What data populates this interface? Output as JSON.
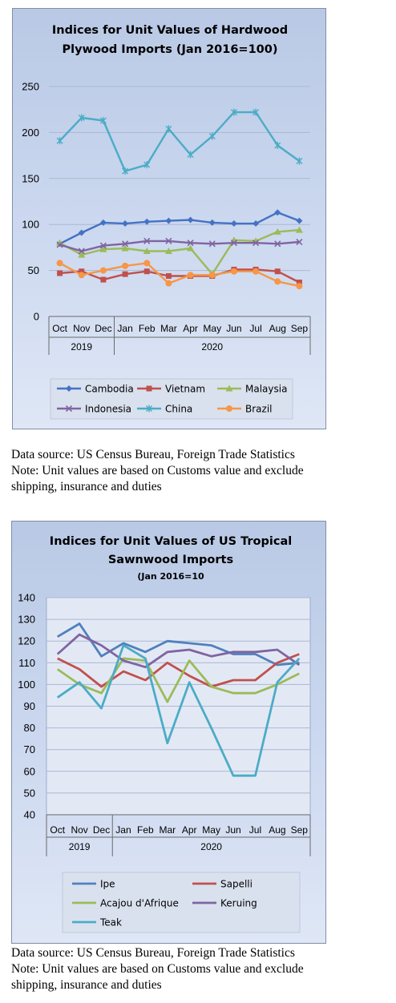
{
  "charts": [
    {
      "title_line1": "Indices for Unit Values of Hardwood",
      "title_line2": "Plywood Imports (Jan 2016=100)",
      "subtitle": ""
    },
    {
      "title_line1": "Indices for Unit Values of US Tropical",
      "title_line2": "Sawnwood Imports",
      "subtitle": "(Jan 2016=10"
    }
  ],
  "notes": [
    {
      "source": "Data source: US Census Bureau, Foreign Trade Statistics",
      "note_line1": "Note: Unit values are based on Customs value and exclude",
      "note_line2": "shipping, insurance and duties"
    },
    {
      "source": "Data source: US Census Bureau, Foreign Trade Statistics",
      "note_line1": "Note: Unit values are based on Customs value and exclude",
      "note_line2": "shipping, insurance and duties"
    }
  ],
  "chart_data": [
    {
      "type": "line",
      "title": "Indices for Unit Values of Hardwood Plywood Imports (Jan 2016=100)",
      "categories": [
        "Oct",
        "Nov",
        "Dec",
        "Jan",
        "Feb",
        "Mar",
        "Apr",
        "May",
        "Jun",
        "Jul",
        "Aug",
        "Sep"
      ],
      "year_groups": [
        {
          "label": "2019",
          "span": 3
        },
        {
          "label": "2020",
          "span": 9
        }
      ],
      "ylim": [
        0,
        250
      ],
      "yticks": [
        0,
        50,
        100,
        150,
        200,
        250
      ],
      "grid": true,
      "legend_position": "bottom",
      "legend_columns": 3,
      "series": [
        {
          "name": "Cambodia",
          "color": "#4472c4",
          "marker": "diamond",
          "values": [
            79,
            91,
            102,
            101,
            103,
            104,
            105,
            102,
            101,
            101,
            113,
            104
          ]
        },
        {
          "name": "Vietnam",
          "color": "#c0504d",
          "marker": "square",
          "values": [
            47,
            49,
            40,
            46,
            49,
            44,
            44,
            44,
            51,
            51,
            49,
            37
          ]
        },
        {
          "name": "Malaysia",
          "color": "#9bbb59",
          "marker": "triangle",
          "values": [
            80,
            67,
            73,
            74,
            71,
            71,
            74,
            46,
            83,
            82,
            92,
            94
          ]
        },
        {
          "name": "Indonesia",
          "color": "#8064a2",
          "marker": "x",
          "values": [
            78,
            71,
            77,
            79,
            82,
            82,
            80,
            79,
            80,
            80,
            79,
            81
          ]
        },
        {
          "name": "China",
          "color": "#4bacc6",
          "marker": "star",
          "values": [
            191,
            216,
            213,
            158,
            165,
            204,
            176,
            196,
            222,
            222,
            186,
            169
          ]
        },
        {
          "name": "Brazil",
          "color": "#f79646",
          "marker": "circle",
          "values": [
            58,
            45,
            50,
            55,
            58,
            36,
            45,
            45,
            49,
            49,
            38,
            33
          ]
        }
      ]
    },
    {
      "type": "line",
      "title": "Indices for Unit Values of US Tropical Sawnwood Imports (Jan 2016=10",
      "categories": [
        "Oct",
        "Nov",
        "Dec",
        "Jan",
        "Feb",
        "Mar",
        "Apr",
        "May",
        "Jun",
        "Jul",
        "Aug",
        "Sep"
      ],
      "year_groups": [
        {
          "label": "2019",
          "span": 3
        },
        {
          "label": "2020",
          "span": 9
        }
      ],
      "ylim": [
        40,
        140
      ],
      "yticks": [
        40,
        50,
        60,
        70,
        80,
        90,
        100,
        110,
        120,
        130,
        140
      ],
      "grid": true,
      "legend_position": "bottom",
      "legend_columns": 2,
      "series": [
        {
          "name": "Ipe",
          "color": "#4f81bd",
          "marker": "none",
          "values": [
            122,
            128,
            113,
            119,
            115,
            120,
            119,
            118,
            114,
            114,
            109,
            110
          ]
        },
        {
          "name": "Sapelli",
          "color": "#c0504d",
          "marker": "none",
          "values": [
            112,
            107,
            99,
            106,
            102,
            110,
            104,
            99,
            102,
            102,
            110,
            114
          ]
        },
        {
          "name": "Acajou d'Afrique",
          "color": "#9bbb59",
          "marker": "none",
          "values": [
            107,
            100,
            96,
            112,
            111,
            92,
            111,
            99,
            96,
            96,
            100,
            105
          ]
        },
        {
          "name": "Keruing",
          "color": "#8064a2",
          "marker": "none",
          "values": [
            114,
            123,
            118,
            111,
            108,
            115,
            116,
            113,
            115,
            115,
            116,
            109
          ]
        },
        {
          "name": "Teak",
          "color": "#4bacc6",
          "marker": "none",
          "values": [
            94,
            101,
            89,
            118,
            112,
            73,
            101,
            80,
            58,
            58,
            101,
            112
          ]
        }
      ]
    }
  ]
}
